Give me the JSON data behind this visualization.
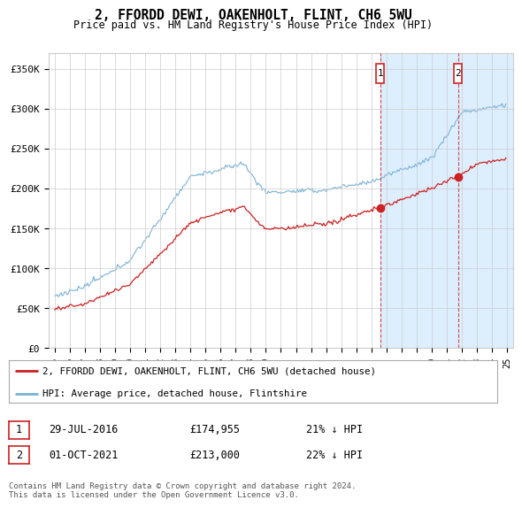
{
  "title": "2, FFORDD DEWI, OAKENHOLT, FLINT, CH6 5WU",
  "subtitle": "Price paid vs. HM Land Registry's House Price Index (HPI)",
  "ylim": [
    0,
    370000
  ],
  "yticks": [
    0,
    50000,
    100000,
    150000,
    200000,
    250000,
    300000,
    350000
  ],
  "ytick_labels": [
    "£0",
    "£50K",
    "£100K",
    "£150K",
    "£200K",
    "£250K",
    "£300K",
    "£350K"
  ],
  "hpi_color": "#7ab3d4",
  "price_color": "#cc2222",
  "shade_color": "#ddeeff",
  "marker1_year": 2016.58,
  "marker2_year": 2021.75,
  "legend_line1": "2, FFORDD DEWI, OAKENHOLT, FLINT, CH6 5WU (detached house)",
  "legend_line2": "HPI: Average price, detached house, Flintshire",
  "table_row1": [
    "1",
    "29-JUL-2016",
    "£174,955",
    "21% ↓ HPI"
  ],
  "table_row2": [
    "2",
    "01-OCT-2021",
    "£213,000",
    "22% ↓ HPI"
  ],
  "footer": "Contains HM Land Registry data © Crown copyright and database right 2024.\nThis data is licensed under the Open Government Licence v3.0.",
  "background_color": "#ffffff",
  "grid_color": "#cccccc",
  "xstart": 1995,
  "xend": 2025
}
